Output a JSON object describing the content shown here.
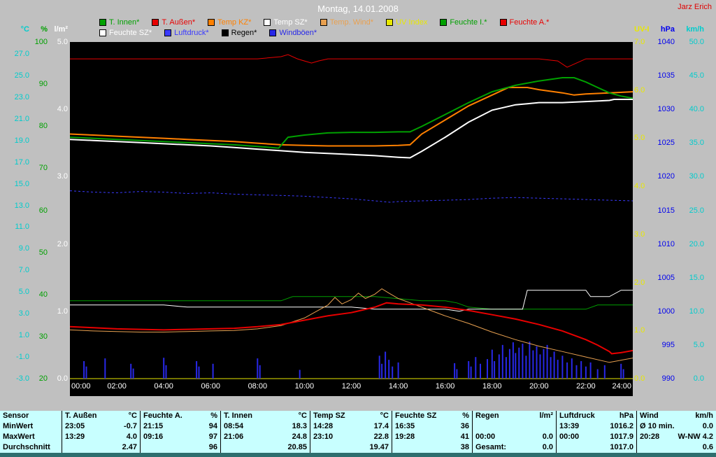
{
  "header": {
    "title": "Montag, 14.01.2008",
    "owner": "Jarz Erich"
  },
  "legend": {
    "row1": [
      {
        "label": "T. Innen*",
        "color": "#00a000"
      },
      {
        "label": "T. Außen*",
        "color": "#e80000"
      },
      {
        "label": "Temp KZ*",
        "color": "#ff8000"
      },
      {
        "label": "Temp SZ*",
        "color": "#ffffff"
      },
      {
        "label": "Temp. Wind*",
        "color": "#e8a050"
      },
      {
        "label": "UV Index",
        "color": "#e8e800"
      },
      {
        "label": "Feuchte I.*",
        "color": "#00a000"
      },
      {
        "label": "Feuchte A.*",
        "color": "#e80000"
      }
    ],
    "row2": [
      {
        "label": "Feuchte SZ*",
        "color": "#ffffff"
      },
      {
        "label": "Luftdruck*",
        "color": "#3a3aff"
      },
      {
        "label": "Regen*",
        "color": "#000000"
      },
      {
        "label": "Windböen*",
        "color": "#2828e8"
      }
    ]
  },
  "chart_data": {
    "type": "line",
    "title": "Montag, 14.01.2008",
    "x_range": [
      0,
      24
    ],
    "x_ticks": [
      "00:00",
      "02:00",
      "04:00",
      "06:00",
      "08:00",
      "10:00",
      "12:00",
      "14:00",
      "16:00",
      "18:00",
      "20:00",
      "22:00",
      "24:00"
    ],
    "axes": {
      "celsius": {
        "unit": "°C",
        "color": "#00cccc",
        "min": -3,
        "max": 28.1,
        "ticks": [
          "27.0",
          "25.0",
          "23.0",
          "21.0",
          "19.0",
          "17.0",
          "15.0",
          "13.0",
          "11.0",
          "9.0",
          "7.0",
          "5.0",
          "3.0",
          "1.0",
          "-1.0",
          "-3.0"
        ]
      },
      "percent": {
        "unit": "%",
        "color": "#00a000",
        "min": 20,
        "max": 100,
        "ticks": [
          "100",
          "90",
          "80",
          "70",
          "60",
          "50",
          "40",
          "30",
          "20"
        ]
      },
      "lm2": {
        "unit": "l/m²",
        "color": "#ffffff",
        "min": 0,
        "max": 5,
        "ticks": [
          "5.0",
          "4.0",
          "3.0",
          "2.0",
          "1.0",
          "0.0"
        ]
      },
      "uv": {
        "unit": "UV-I",
        "color": "#e8e800",
        "min": 0,
        "max": 7,
        "ticks": [
          "7.0",
          "6.0",
          "5.0",
          "4.0",
          "3.0",
          "2.0",
          "1.0",
          "0.0"
        ]
      },
      "hpa": {
        "unit": "hPa",
        "color": "#0000ee",
        "min": 990,
        "max": 1040,
        "ticks": [
          "1040",
          "1035",
          "1030",
          "1025",
          "1020",
          "1015",
          "1010",
          "1005",
          "1000",
          "995",
          "990"
        ]
      },
      "kmh": {
        "unit": "km/h",
        "color": "#00cccc",
        "min": 0,
        "max": 50,
        "ticks": [
          "50.0",
          "45.0",
          "40.0",
          "35.0",
          "30.0",
          "25.0",
          "20.0",
          "15.0",
          "10.0",
          "5.0",
          "0.0"
        ]
      }
    },
    "series": [
      {
        "name": "Luftdruck",
        "axis": "hpa",
        "color": "#3a3aff",
        "width": 1,
        "dash": "3 3",
        "x": [
          0,
          1,
          2,
          3,
          4,
          5,
          6,
          7,
          8,
          9,
          10,
          11,
          12,
          13,
          13.65,
          14,
          15,
          16,
          17,
          18,
          19,
          20,
          21,
          22,
          23,
          24
        ],
        "values": [
          1017.9,
          1017.7,
          1017.6,
          1017.8,
          1017.7,
          1017.5,
          1017.6,
          1017.4,
          1017.3,
          1017.2,
          1017.1,
          1016.9,
          1016.7,
          1016.4,
          1016.2,
          1016.3,
          1016.4,
          1016.5,
          1016.6,
          1016.8,
          1016.9,
          1016.8,
          1016.7,
          1016.6,
          1016.5,
          1016.4
        ]
      },
      {
        "name": "Regen",
        "axis": "lm2",
        "color": "#000000",
        "width": 1,
        "x": [
          0,
          24
        ],
        "values": [
          0,
          0
        ]
      },
      {
        "name": "UV Index",
        "axis": "uv",
        "color": "#e8e800",
        "width": 1,
        "x": [
          0,
          24
        ],
        "values": [
          0,
          0
        ]
      },
      {
        "name": "Windböen",
        "type": "bars",
        "axis": "kmh",
        "color": "#2828e8",
        "bars": [
          [
            0.6,
            2.6
          ],
          [
            0.7,
            1.8
          ],
          [
            1.5,
            3.0
          ],
          [
            2.6,
            2.2
          ],
          [
            2.7,
            1.5
          ],
          [
            4.0,
            3.1
          ],
          [
            4.1,
            2.0
          ],
          [
            5.4,
            2.6
          ],
          [
            5.5,
            1.8
          ],
          [
            6.1,
            2.2
          ],
          [
            8.0,
            3.0
          ],
          [
            8.1,
            2.0
          ],
          [
            9.8,
            1.3
          ],
          [
            13.2,
            3.4
          ],
          [
            13.3,
            2.2
          ],
          [
            13.45,
            4.0
          ],
          [
            13.6,
            2.8
          ],
          [
            13.75,
            1.8
          ],
          [
            14.0,
            2.4
          ],
          [
            16.4,
            2.3
          ],
          [
            16.5,
            1.4
          ],
          [
            17.0,
            2.6
          ],
          [
            17.1,
            1.8
          ],
          [
            17.3,
            3.2
          ],
          [
            17.5,
            2.2
          ],
          [
            17.8,
            2.9
          ],
          [
            18.0,
            4.3
          ],
          [
            18.1,
            2.6
          ],
          [
            18.3,
            3.6
          ],
          [
            18.45,
            5.0
          ],
          [
            18.6,
            3.2
          ],
          [
            18.75,
            4.4
          ],
          [
            18.9,
            5.4
          ],
          [
            19.0,
            3.8
          ],
          [
            19.15,
            4.6
          ],
          [
            19.3,
            5.2
          ],
          [
            19.45,
            3.4
          ],
          [
            19.6,
            5.5
          ],
          [
            19.75,
            4.2
          ],
          [
            19.9,
            4.8
          ],
          [
            20.05,
            3.6
          ],
          [
            20.2,
            4.4
          ],
          [
            20.35,
            5.0
          ],
          [
            20.5,
            3.2
          ],
          [
            20.65,
            4.0
          ],
          [
            20.8,
            2.8
          ],
          [
            21.0,
            3.4
          ],
          [
            21.2,
            2.4
          ],
          [
            21.4,
            3.0
          ],
          [
            21.6,
            2.0
          ],
          [
            21.8,
            2.6
          ],
          [
            22.0,
            1.8
          ],
          [
            22.2,
            2.4
          ],
          [
            22.5,
            1.4
          ],
          [
            22.8,
            2.0
          ],
          [
            23.5,
            2.2
          ],
          [
            23.6,
            1.4
          ]
        ]
      },
      {
        "name": "Feuchte I.",
        "axis": "percent",
        "color": "#00a000",
        "width": 1,
        "x": [
          0,
          2,
          4,
          6,
          8,
          9,
          9.5,
          11,
          13,
          14,
          15,
          16,
          16.5,
          17,
          18,
          19,
          20,
          21,
          22,
          22.5,
          23,
          24
        ],
        "values": [
          38.5,
          38.5,
          38.5,
          38.5,
          38.5,
          38.5,
          39.5,
          39.5,
          39.5,
          39,
          38.5,
          38.5,
          38,
          37,
          36.5,
          36.5,
          36.5,
          36.5,
          36.5,
          37.5,
          37.5,
          37.5
        ]
      },
      {
        "name": "Feuchte A.",
        "axis": "percent",
        "color": "#e80000",
        "width": 1,
        "x": [
          0,
          2,
          4,
          6,
          8,
          9,
          9.3,
          9.7,
          10,
          10.3,
          10.6,
          11,
          14,
          17,
          20,
          20.8,
          21.2,
          21.6,
          22,
          24
        ],
        "values": [
          96,
          96,
          96,
          96,
          96,
          96.5,
          97,
          96,
          95.5,
          95,
          95.5,
          96,
          96,
          96,
          96,
          95.5,
          94,
          95,
          96,
          96
        ]
      },
      {
        "name": "Feuchte SZ",
        "axis": "percent",
        "color": "#ffffff",
        "width": 1,
        "x": [
          0,
          2,
          4,
          5,
          6,
          8,
          10,
          12,
          13,
          14,
          15,
          16,
          16.6,
          17,
          18,
          19,
          19.3,
          19.5,
          21,
          22,
          22.2,
          23,
          23.5,
          24
        ],
        "values": [
          37.5,
          37.5,
          37.5,
          37,
          37,
          37,
          37,
          37,
          36.5,
          36.5,
          36.5,
          36.5,
          36,
          36.5,
          36.5,
          36.5,
          36.5,
          41,
          41,
          41,
          39.5,
          39.5,
          41,
          41
        ]
      },
      {
        "name": "Temp SZ",
        "axis": "celsius",
        "color": "#ffffff",
        "width": 2,
        "x": [
          0,
          1,
          2,
          3,
          4,
          5,
          6,
          7,
          8,
          9,
          10,
          11,
          12,
          13,
          14,
          14.5,
          15,
          16,
          17,
          18,
          19,
          19.5,
          20,
          21,
          22,
          23,
          23.2,
          24
        ],
        "values": [
          19.1,
          19.0,
          18.9,
          18.8,
          18.7,
          18.6,
          18.5,
          18.35,
          18.2,
          18.05,
          17.9,
          17.8,
          17.7,
          17.6,
          17.45,
          17.4,
          18.0,
          19.3,
          20.7,
          21.8,
          22.3,
          22.4,
          22.5,
          22.5,
          22.6,
          22.7,
          22.8,
          22.8
        ]
      },
      {
        "name": "Temp KZ",
        "axis": "celsius",
        "color": "#ff8000",
        "width": 2,
        "x": [
          0,
          1,
          2,
          3,
          4,
          5,
          6,
          7,
          8,
          9,
          10,
          11,
          12,
          13,
          14,
          14.5,
          15,
          16,
          17,
          18,
          18.7,
          19.5,
          20,
          21,
          21.5,
          22,
          23,
          24
        ],
        "values": [
          19.6,
          19.5,
          19.4,
          19.3,
          19.2,
          19.1,
          19.0,
          18.9,
          18.75,
          18.6,
          18.55,
          18.5,
          18.5,
          18.5,
          18.55,
          18.6,
          19.6,
          20.9,
          22.2,
          23.2,
          23.9,
          23.9,
          23.7,
          23.4,
          23.2,
          23.3,
          23.4,
          23.5
        ]
      },
      {
        "name": "T. Innen",
        "axis": "celsius",
        "color": "#00a000",
        "width": 2,
        "x": [
          0,
          1,
          2,
          3,
          4,
          5,
          6,
          7,
          8,
          8.9,
          9.3,
          10,
          11,
          12,
          13,
          14,
          14.5,
          15,
          16,
          17,
          18,
          19,
          20,
          21,
          21.5,
          22,
          22.5,
          23,
          23.5,
          24
        ],
        "values": [
          19.3,
          19.2,
          19.1,
          19.0,
          18.9,
          18.8,
          18.7,
          18.6,
          18.45,
          18.3,
          19.3,
          19.5,
          19.7,
          19.75,
          19.75,
          19.8,
          19.8,
          20.3,
          21.4,
          22.5,
          23.5,
          24.1,
          24.5,
          24.8,
          24.8,
          24.4,
          23.9,
          23.4,
          23.1,
          22.9
        ]
      },
      {
        "name": "Temp. Wind",
        "axis": "celsius",
        "color": "#e8a050",
        "width": 1,
        "x": [
          0,
          1,
          2,
          3,
          4,
          5,
          6,
          7,
          8,
          9,
          10,
          10.5,
          11,
          11.3,
          11.6,
          12,
          12.3,
          12.6,
          13,
          13.3,
          13.6,
          14,
          14.5,
          15,
          16,
          17,
          18,
          19,
          20,
          21,
          22,
          23,
          23.5,
          24
        ],
        "values": [
          1.5,
          1.4,
          1.35,
          1.3,
          1.3,
          1.35,
          1.4,
          1.45,
          1.6,
          1.9,
          2.6,
          3.2,
          3.8,
          4.5,
          3.9,
          4.3,
          4.9,
          4.4,
          4.8,
          5.3,
          4.9,
          4.4,
          4.0,
          3.6,
          2.8,
          2.1,
          1.3,
          0.6,
          0.0,
          -0.5,
          -1.0,
          -1.5,
          -1.3,
          -1.1
        ]
      },
      {
        "name": "T. Außen",
        "axis": "celsius",
        "color": "#e80000",
        "width": 2,
        "x": [
          0,
          1,
          2,
          3,
          4,
          5,
          6,
          7,
          8,
          9,
          10,
          11,
          12,
          13,
          13.5,
          14,
          15,
          16,
          17,
          18,
          19,
          20,
          21,
          22,
          22.5,
          23,
          23.1,
          23.5,
          24
        ],
        "values": [
          1.8,
          1.7,
          1.6,
          1.55,
          1.5,
          1.55,
          1.6,
          1.65,
          1.8,
          2.0,
          2.4,
          2.8,
          3.1,
          3.6,
          4.0,
          3.9,
          3.8,
          3.6,
          3.3,
          2.9,
          2.5,
          2.0,
          1.4,
          0.6,
          0.1,
          -0.5,
          -0.7,
          -0.6,
          -0.4
        ]
      }
    ]
  },
  "table": {
    "header": {
      "sensor": "Sensor",
      "groups": [
        {
          "name": "T. Außen",
          "unit": "°C"
        },
        {
          "name": "Feuchte A.",
          "unit": "%"
        },
        {
          "name": "T. Innen",
          "unit": "°C"
        },
        {
          "name": "Temp SZ",
          "unit": "°C"
        },
        {
          "name": "Feuchte SZ",
          "unit": "%"
        },
        {
          "name": "Regen",
          "unit": "l/m²"
        },
        {
          "name": "Luftdruck",
          "unit": "hPa"
        },
        {
          "name": "Wind",
          "unit": "km/h"
        }
      ]
    },
    "rows": [
      {
        "label": "MinWert",
        "cells": [
          [
            "23:05",
            "-0.7"
          ],
          [
            "21:15",
            "94"
          ],
          [
            "08:54",
            "18.3"
          ],
          [
            "14:28",
            "17.4"
          ],
          [
            "16:35",
            "36"
          ],
          [
            "",
            ""
          ],
          [
            "13:39",
            "1016.2"
          ],
          [
            "Ø 10 min.",
            "0.0"
          ]
        ]
      },
      {
        "label": "MaxWert",
        "cells": [
          [
            "13:29",
            "4.0"
          ],
          [
            "09:16",
            "97"
          ],
          [
            "21:06",
            "24.8"
          ],
          [
            "23:10",
            "22.8"
          ],
          [
            "19:28",
            "41"
          ],
          [
            "00:00",
            "0.0"
          ],
          [
            "00:00",
            "1017.9"
          ],
          [
            "20:28",
            "W-NW 4.2"
          ]
        ]
      },
      {
        "label": "Durchschnitt",
        "cells": [
          [
            "",
            "2.47"
          ],
          [
            "",
            "96"
          ],
          [
            "",
            "20.85"
          ],
          [
            "",
            "19.47"
          ],
          [
            "",
            "38"
          ],
          [
            "Gesamt:",
            "0.0"
          ],
          [
            "",
            "1017.0"
          ],
          [
            "",
            "0.6"
          ]
        ]
      }
    ]
  }
}
